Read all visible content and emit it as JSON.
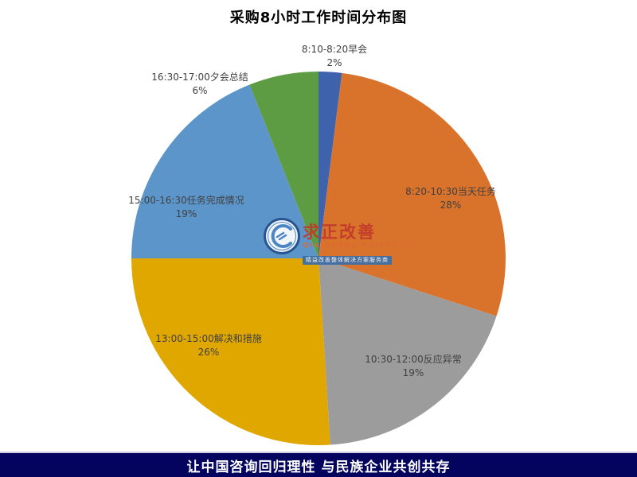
{
  "chart_data": {
    "type": "pie",
    "title": "采购8小时工作时间分布图",
    "categories": [
      "8:10-8:20早会",
      "8:20-10:30当天任务",
      "10:30-12:00反应异常",
      "13:00-15:00解决和措施",
      "15:00-16:30任务完成情况",
      "16:30-17:00夕会总结"
    ],
    "values": [
      2,
      28,
      19,
      26,
      19,
      6
    ],
    "percent_labels": [
      "2%",
      "28%",
      "19%",
      "26%",
      "19%",
      "6%"
    ],
    "colors": [
      "#3e63ac",
      "#d9732c",
      "#9c9c9c",
      "#dfa700",
      "#5c95c9",
      "#5e9c43"
    ],
    "start_angle": "top, clockwise",
    "legend": "none",
    "label_style": "category name with percent, small slices labeled outside"
  },
  "watermark": {
    "brand": "求正改善",
    "latin": "Qiu Zheng kaizen",
    "tagline": "精益改善整体解决方案服务商"
  },
  "footer": {
    "text": "让中国咨询回归理性  与民族企业共创共存",
    "background": "#04045e",
    "text_color": "#ffffff"
  }
}
